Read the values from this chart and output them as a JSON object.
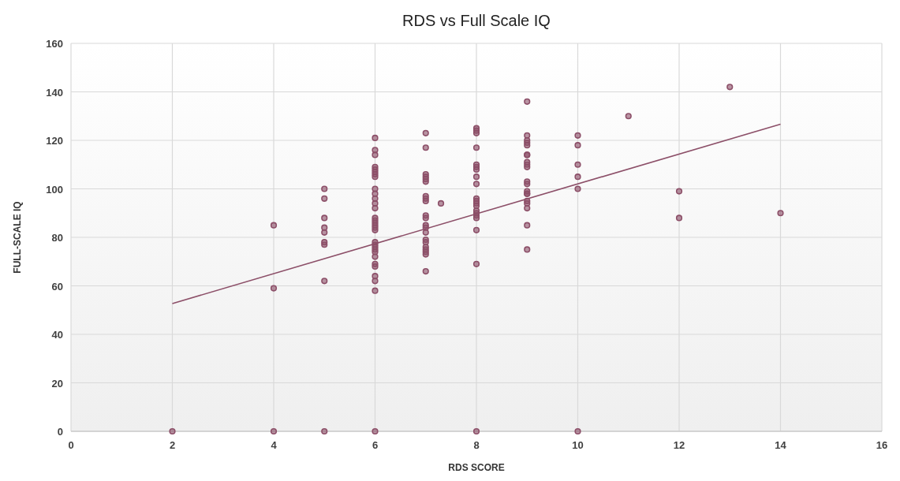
{
  "chart_data": {
    "type": "scatter",
    "title": "RDS vs Full Scale IQ",
    "xlabel": "RDS SCORE",
    "ylabel": "FULL-SCALE IQ",
    "xlim": [
      0,
      16
    ],
    "xticks": [
      0,
      2,
      4,
      6,
      8,
      10,
      12,
      14,
      16
    ],
    "ylim": [
      0,
      160
    ],
    "yticks": [
      0,
      20,
      40,
      60,
      80,
      100,
      120,
      140,
      160
    ],
    "grid": true,
    "series": [
      {
        "color": "#8c4f68",
        "marker": "circle",
        "x": [
          2,
          4,
          4,
          4,
          5,
          5,
          5,
          5,
          5,
          5,
          5,
          5,
          5,
          6,
          6,
          6,
          6,
          6,
          6,
          6,
          6,
          6,
          6,
          6,
          6,
          6,
          6,
          6,
          6,
          6,
          6,
          6,
          6,
          6,
          6,
          6,
          6,
          6,
          6,
          6,
          6,
          6,
          6,
          6,
          7,
          7,
          7,
          7,
          7,
          7,
          7,
          7,
          7,
          7,
          7,
          7,
          7,
          7,
          7,
          7,
          7,
          7,
          7,
          7,
          7,
          7.3,
          8,
          8,
          8,
          8,
          8,
          8,
          8,
          8,
          8,
          8,
          8,
          8,
          8,
          8,
          8,
          8,
          8,
          8,
          8,
          8,
          9,
          9,
          9,
          9,
          9,
          9,
          9,
          9,
          9,
          9,
          9,
          9,
          9,
          9,
          9,
          9,
          9,
          9,
          9,
          9,
          10,
          10,
          10,
          10,
          10,
          10,
          11,
          12,
          12,
          13,
          14
        ],
        "values": [
          0,
          85,
          59,
          0,
          100,
          96,
          88,
          84,
          82,
          78,
          77,
          62,
          0,
          121,
          116,
          114,
          109,
          108,
          107,
          106,
          105,
          100,
          98,
          96,
          94,
          92,
          88,
          87,
          86,
          85,
          84,
          83,
          78,
          77,
          76,
          75,
          74,
          72,
          69,
          68,
          64,
          62,
          58,
          0,
          123,
          117,
          106,
          105,
          104,
          103,
          97,
          96,
          95,
          89,
          88,
          85,
          84,
          82,
          79,
          78,
          76,
          75,
          74,
          73,
          66,
          94,
          125,
          124,
          123,
          117,
          110,
          109,
          108,
          105,
          102,
          96,
          95,
          94,
          93,
          91,
          90,
          89,
          88,
          83,
          69,
          0,
          136,
          122,
          120,
          119,
          118,
          114,
          114,
          111,
          110,
          109,
          103,
          102,
          99,
          98,
          98,
          95,
          94,
          92,
          85,
          75,
          122,
          118,
          110,
          105,
          100,
          0,
          130,
          99,
          88,
          142,
          90
        ]
      },
      {
        "type": "line",
        "color": "#8c4f68",
        "x": [
          2,
          14
        ],
        "values": [
          52.7,
          126.7
        ],
        "line_style": "solid"
      }
    ]
  }
}
